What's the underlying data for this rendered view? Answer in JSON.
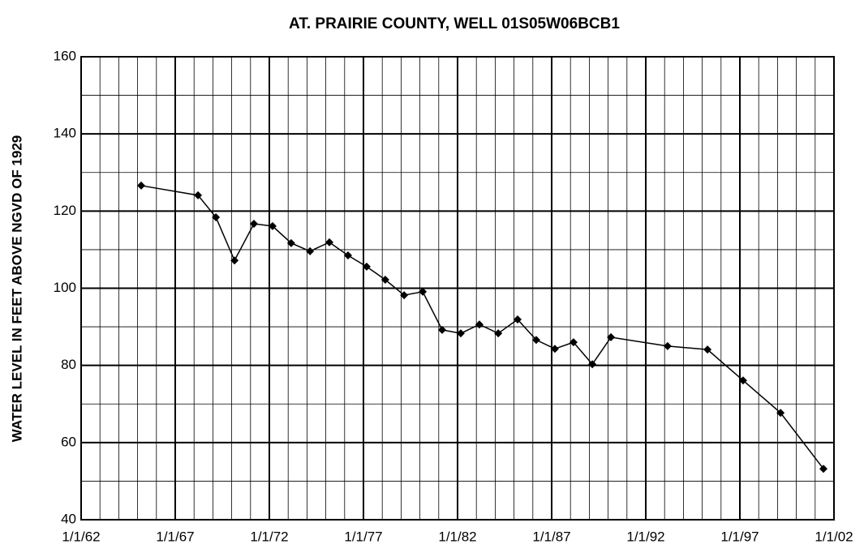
{
  "chart_data": {
    "type": "line",
    "title": "AT. PRAIRIE COUNTY, WELL 01S05W06BCB1",
    "y_label": "WATER LEVEL  IN  FEET ABOVE NGVD OF 1929",
    "x": [
      1965.19,
      1968.21,
      1969.16,
      1970.15,
      1971.18,
      1972.17,
      1973.16,
      1974.16,
      1975.19,
      1976.18,
      1977.17,
      1978.16,
      1979.16,
      1980.15,
      1981.18,
      1982.17,
      1983.16,
      1984.16,
      1985.19,
      1986.18,
      1987.17,
      1988.16,
      1989.16,
      1990.15,
      1993.16,
      1995.28,
      1997.17,
      1999.16,
      2001.44
    ],
    "series": [
      {
        "color": "#000000",
        "values": [
          126.6,
          124.1,
          118.4,
          107.2,
          116.7,
          116.1,
          111.7,
          109.6,
          111.9,
          108.5,
          105.6,
          102.2,
          98.2,
          99.1,
          89.2,
          88.3,
          90.6,
          88.3,
          91.9,
          86.6,
          84.3,
          86.0,
          80.3,
          87.3,
          85.0,
          84.1,
          76.1,
          67.7,
          53.2
        ]
      }
    ],
    "xlim": [
      1962,
      2002
    ],
    "xticks": [
      {
        "value": 1962,
        "label": "1/1/62"
      },
      {
        "value": 1967,
        "label": "1/1/67"
      },
      {
        "value": 1972,
        "label": "1/1/72"
      },
      {
        "value": 1977,
        "label": "1/1/77"
      },
      {
        "value": 1982,
        "label": "1/1/82"
      },
      {
        "value": 1987,
        "label": "1/1/87"
      },
      {
        "value": 1992,
        "label": "1/1/92"
      },
      {
        "value": 1997,
        "label": "1/1/97"
      },
      {
        "value": 2002,
        "label": "1/1/02"
      }
    ],
    "ylim": [
      40,
      160
    ],
    "yticks": [
      40,
      60,
      80,
      100,
      120,
      140,
      160
    ],
    "grid": true,
    "minor_grid": {
      "x": 1,
      "y": 10
    }
  }
}
